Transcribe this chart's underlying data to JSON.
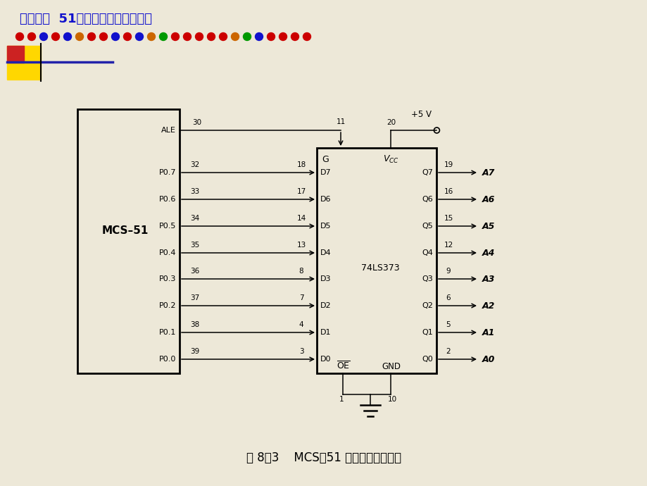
{
  "header_bracket": "【第八章  51单片机存储器的设计】",
  "caption": "图 8－3    MCS－51 地址总线扩展电路",
  "bg_color": "#ede8d8",
  "header_color": "#1111cc",
  "dot_colors": [
    "#cc0000",
    "#cc0000",
    "#1111cc",
    "#cc0000",
    "#1111cc",
    "#cc6600",
    "#cc0000",
    "#cc0000",
    "#1111cc",
    "#cc0000",
    "#1111cc",
    "#cc6600",
    "#009900",
    "#cc0000",
    "#cc0000",
    "#cc0000",
    "#cc0000",
    "#cc0000",
    "#cc6600",
    "#009900",
    "#1111cc",
    "#cc0000",
    "#cc0000",
    "#cc0000",
    "#cc0000"
  ],
  "port_labels": [
    "P0.7",
    "P0.6",
    "P0.5",
    "P0.4",
    "P0.3",
    "P0.2",
    "P0.1",
    "P0.0"
  ],
  "port_nums_left": [
    "32",
    "33",
    "34",
    "35",
    "36",
    "37",
    "38",
    "39"
  ],
  "port_nums_right": [
    "18",
    "17",
    "14",
    "13",
    "8",
    "7",
    "4",
    "3"
  ],
  "d_labels": [
    "D7",
    "D6",
    "D5",
    "D4",
    "D3",
    "D2",
    "D1",
    "D0"
  ],
  "q_labels": [
    "Q7",
    "Q6",
    "Q5",
    "Q4",
    "Q3",
    "Q2",
    "Q1",
    "Q0"
  ],
  "q_nums": [
    "19",
    "16",
    "15",
    "12",
    "9",
    "6",
    "5",
    "2"
  ],
  "a_labels": [
    "A7",
    "A6",
    "A5",
    "A4",
    "A3",
    "A2",
    "A1",
    "A0"
  ]
}
